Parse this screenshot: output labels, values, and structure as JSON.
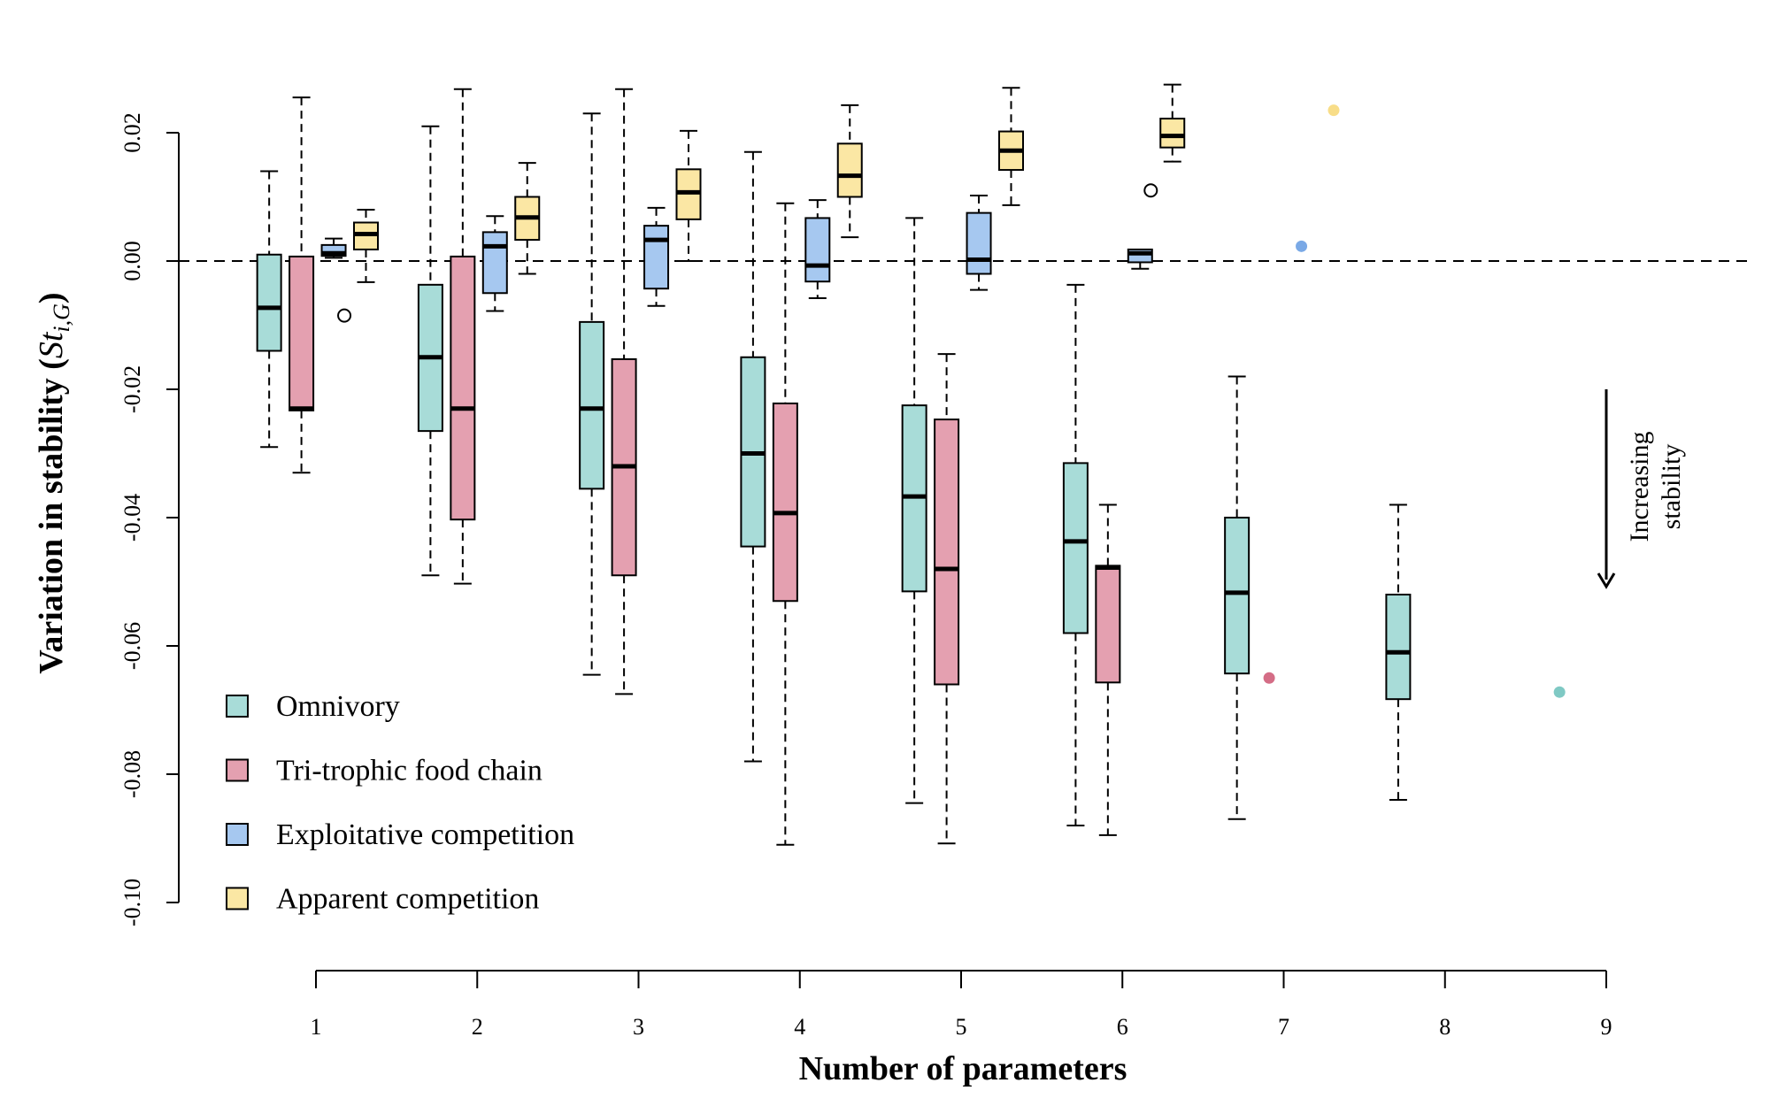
{
  "chart_data": {
    "type": "box",
    "xlabel": "Number of parameters",
    "ylabel_main": "Variation in stability (",
    "ylabel_sym": "St",
    "ylabel_sub": "i,G",
    "ylabel_close": ")",
    "ylim": [
      -0.1,
      0.02
    ],
    "xlim": [
      1,
      9
    ],
    "x_ticks": [
      "1",
      "2",
      "3",
      "4",
      "5",
      "6",
      "7",
      "8",
      "9"
    ],
    "y_ticks": [
      "0.02",
      "0.00",
      "-0.02",
      "-0.04",
      "-0.06",
      "-0.08",
      "-0.10"
    ],
    "reference_line": 0,
    "annotation": [
      "Increasing",
      "stability"
    ],
    "legend_position": "bottom-left",
    "series": [
      {
        "name": "Omnivory",
        "color": "#a8dcd8",
        "boxes": [
          {
            "x": 1,
            "whisker_low": -0.029,
            "q1": -0.014,
            "median": -0.0073,
            "q3": 0.001,
            "whisker_high": 0.014,
            "outliers": []
          },
          {
            "x": 2,
            "whisker_low": -0.049,
            "q1": -0.0265,
            "median": -0.015,
            "q3": -0.0037,
            "whisker_high": 0.021,
            "outliers": []
          },
          {
            "x": 3,
            "whisker_low": -0.0645,
            "q1": -0.0355,
            "median": -0.023,
            "q3": -0.0095,
            "whisker_high": 0.023,
            "outliers": []
          },
          {
            "x": 4,
            "whisker_low": -0.078,
            "q1": -0.0445,
            "median": -0.03,
            "q3": -0.015,
            "whisker_high": 0.017,
            "outliers": []
          },
          {
            "x": 5,
            "whisker_low": -0.0845,
            "q1": -0.0515,
            "median": -0.0367,
            "q3": -0.0225,
            "whisker_high": 0.0067,
            "outliers": []
          },
          {
            "x": 6,
            "whisker_low": -0.088,
            "q1": -0.058,
            "median": -0.0437,
            "q3": -0.0315,
            "whisker_high": -0.0037,
            "outliers": []
          },
          {
            "x": 7,
            "whisker_low": -0.087,
            "q1": -0.0643,
            "median": -0.0517,
            "q3": -0.04,
            "whisker_high": -0.018,
            "outliers": []
          },
          {
            "x": 8,
            "whisker_low": -0.084,
            "q1": -0.0683,
            "median": -0.061,
            "q3": -0.052,
            "whisker_high": -0.038,
            "outliers": []
          },
          {
            "x": 9,
            "points": [
              -0.0672
            ]
          }
        ]
      },
      {
        "name": "Tri-trophic food chain",
        "color": "#e4a0b0",
        "boxes": [
          {
            "x": 1,
            "whisker_low": -0.033,
            "q1": -0.0233,
            "median": -0.023,
            "q3": 0.0007,
            "whisker_high": 0.0255,
            "outliers": []
          },
          {
            "x": 2,
            "whisker_low": -0.0503,
            "q1": -0.0403,
            "median": -0.023,
            "q3": 0.0007,
            "whisker_high": 0.0268,
            "outliers": []
          },
          {
            "x": 3,
            "whisker_low": -0.0675,
            "q1": -0.049,
            "median": -0.032,
            "q3": -0.0153,
            "whisker_high": 0.0268,
            "outliers": []
          },
          {
            "x": 4,
            "whisker_low": -0.091,
            "q1": -0.053,
            "median": -0.0393,
            "q3": -0.0222,
            "whisker_high": 0.009,
            "outliers": []
          },
          {
            "x": 5,
            "whisker_low": -0.0908,
            "q1": -0.066,
            "median": -0.048,
            "q3": -0.0247,
            "whisker_high": -0.0145,
            "outliers": []
          },
          {
            "x": 6,
            "whisker_low": -0.0895,
            "q1": -0.0657,
            "median": -0.0478,
            "q3": -0.0475,
            "whisker_high": -0.038,
            "outliers": []
          },
          {
            "x": 7,
            "points": [
              -0.065
            ]
          }
        ]
      },
      {
        "name": "Exploitative competition",
        "color": "#a6c8f0",
        "boxes": [
          {
            "x": 1,
            "whisker_low": 0.0005,
            "q1": 0.0008,
            "median": 0.0012,
            "q3": 0.0025,
            "whisker_high": 0.0035,
            "outliers": [
              -0.0085
            ]
          },
          {
            "x": 2,
            "whisker_low": -0.0078,
            "q1": -0.005,
            "median": 0.0023,
            "q3": 0.0045,
            "whisker_high": 0.007,
            "outliers": []
          },
          {
            "x": 3,
            "whisker_low": -0.007,
            "q1": -0.0043,
            "median": 0.0033,
            "q3": 0.0055,
            "whisker_high": 0.0083,
            "outliers": []
          },
          {
            "x": 4,
            "whisker_low": -0.0058,
            "q1": -0.0032,
            "median": -0.0007,
            "q3": 0.0067,
            "whisker_high": 0.0095,
            "outliers": []
          },
          {
            "x": 5,
            "whisker_low": -0.0045,
            "q1": -0.002,
            "median": 0.0002,
            "q3": 0.0075,
            "whisker_high": 0.0102,
            "outliers": []
          },
          {
            "x": 6,
            "whisker_low": -0.0012,
            "q1": -0.0002,
            "median": 0.0012,
            "q3": 0.0018,
            "whisker_high": 0.0018,
            "outliers": [
              0.011
            ]
          },
          {
            "x": 7,
            "points": [
              0.0023
            ]
          }
        ]
      },
      {
        "name": "Apparent competition",
        "color": "#fbe7a4",
        "boxes": [
          {
            "x": 1,
            "whisker_low": -0.0033,
            "q1": 0.0018,
            "median": 0.0042,
            "q3": 0.006,
            "whisker_high": 0.008,
            "outliers": []
          },
          {
            "x": 2,
            "whisker_low": -0.002,
            "q1": 0.0033,
            "median": 0.0068,
            "q3": 0.01,
            "whisker_high": 0.0153,
            "outliers": []
          },
          {
            "x": 3,
            "whisker_low": 0.0,
            "q1": 0.0065,
            "median": 0.0107,
            "q3": 0.0143,
            "whisker_high": 0.0203,
            "outliers": []
          },
          {
            "x": 4,
            "whisker_low": 0.0037,
            "q1": 0.01,
            "median": 0.0133,
            "q3": 0.0183,
            "whisker_high": 0.0243,
            "outliers": []
          },
          {
            "x": 5,
            "whisker_low": 0.0087,
            "q1": 0.0142,
            "median": 0.0172,
            "q3": 0.0202,
            "whisker_high": 0.027,
            "outliers": []
          },
          {
            "x": 6,
            "whisker_low": 0.0155,
            "q1": 0.0177,
            "median": 0.0195,
            "q3": 0.0222,
            "whisker_high": 0.0275,
            "outliers": []
          },
          {
            "x": 7,
            "points": [
              0.0235
            ]
          }
        ]
      }
    ]
  }
}
